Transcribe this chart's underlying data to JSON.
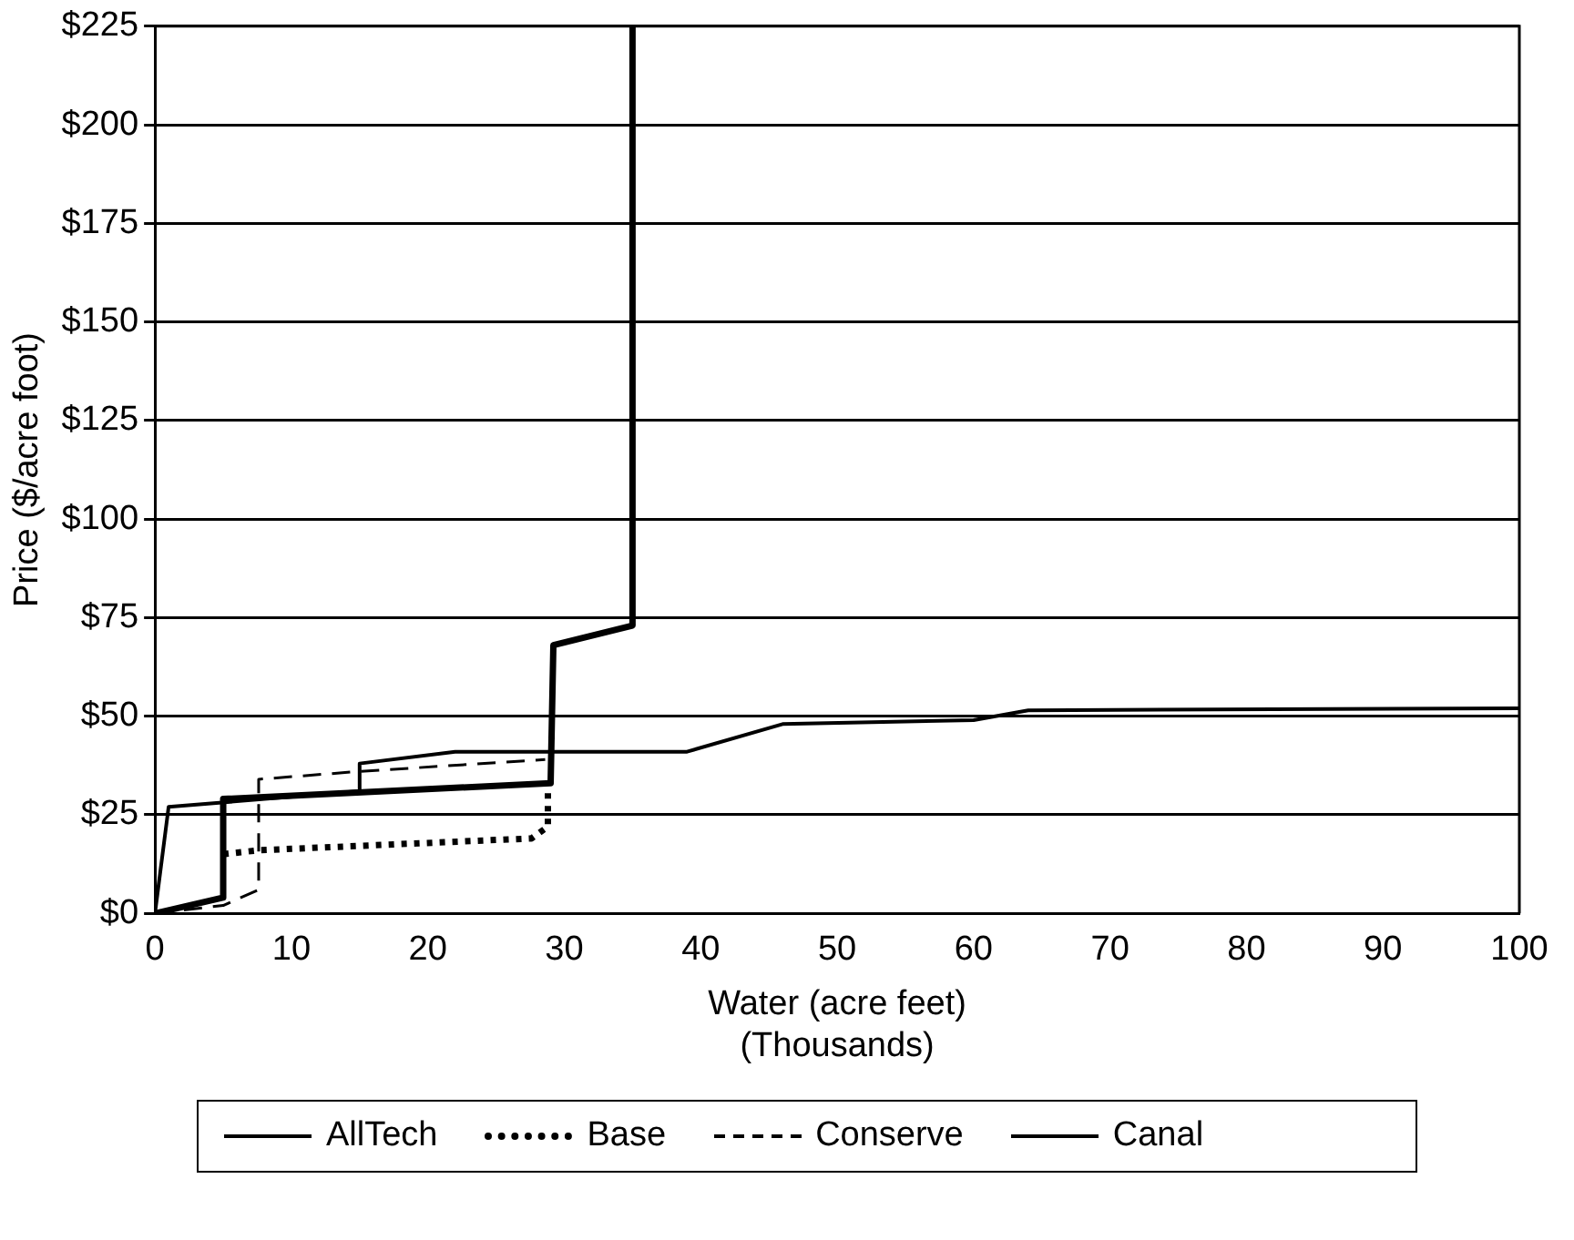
{
  "chart_data": {
    "type": "line",
    "xlabel": "Water (acre feet)\n(Thousands)",
    "ylabel": "Price ($/acre foot)",
    "series": [
      {
        "name": "AllTech",
        "color": "#000000",
        "line_style": "solid",
        "x": [
          0,
          5,
          5,
          29,
          29.2,
          35,
          35
        ],
        "values": [
          0,
          4,
          29,
          33,
          68,
          73,
          225
        ]
      },
      {
        "name": "Base",
        "color": "#000000",
        "line_style": "dotted",
        "x": [
          5,
          7.6,
          27.6,
          28.8,
          28.8
        ],
        "values": [
          15,
          16,
          19,
          22,
          31
        ]
      },
      {
        "name": "Conserve",
        "color": "#000000",
        "line_style": "dashed",
        "x": [
          0,
          5,
          7.6,
          7.6,
          15,
          28.6
        ],
        "values": [
          0,
          2,
          6,
          34,
          36,
          39
        ]
      },
      {
        "name": "Canal",
        "color": "#000000",
        "line_style": "solid",
        "x": [
          0,
          1,
          15,
          15,
          22,
          39,
          46,
          60,
          64,
          100
        ],
        "values": [
          0,
          27,
          31,
          38,
          41,
          41,
          48,
          49,
          51.5,
          52
        ]
      }
    ],
    "xlim": [
      0,
      100
    ],
    "xticks": [
      0,
      10,
      20,
      30,
      40,
      50,
      60,
      70,
      80,
      90,
      100
    ],
    "ylim": [
      0,
      225
    ],
    "yticks": [
      {
        "value": 0,
        "label": "$0"
      },
      {
        "value": 25,
        "label": "$25"
      },
      {
        "value": 50,
        "label": "$50"
      },
      {
        "value": 75,
        "label": "$75"
      },
      {
        "value": 100,
        "label": "$100"
      },
      {
        "value": 125,
        "label": "$125"
      },
      {
        "value": 150,
        "label": "$150"
      },
      {
        "value": 175,
        "label": "$175"
      },
      {
        "value": 200,
        "label": "$200"
      },
      {
        "value": 225,
        "label": "$225"
      }
    ],
    "grid": "y",
    "legend": "bottom",
    "marker": "none"
  }
}
